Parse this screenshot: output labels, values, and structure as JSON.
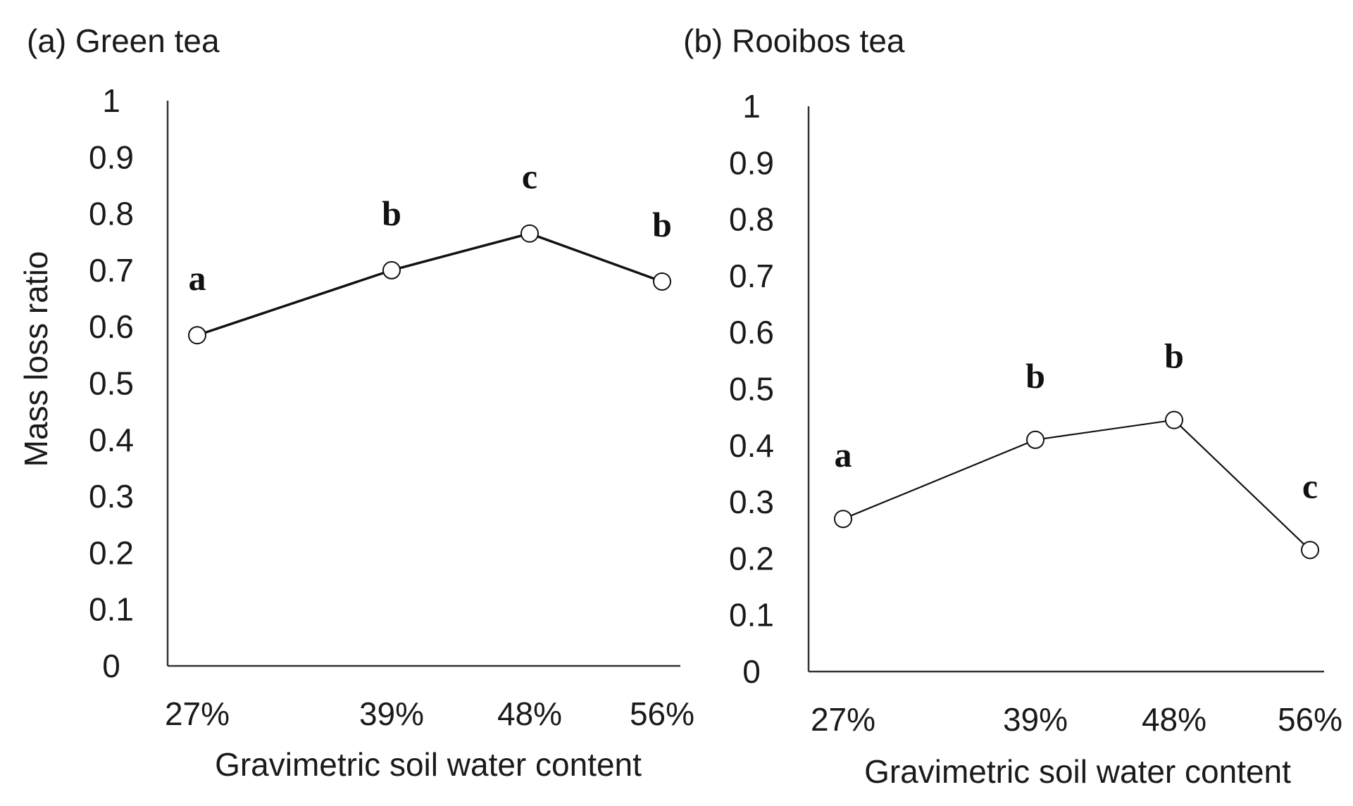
{
  "chart_data": [
    {
      "type": "line",
      "title": "(a) Green tea",
      "xlabel": "Gravimetric soil water content",
      "ylabel": "Mass loss ratio",
      "ylim": [
        0,
        1
      ],
      "yticks": [
        "0",
        "0.1",
        "0.2",
        "0.3",
        "0.4",
        "0.5",
        "0.6",
        "0.7",
        "0.8",
        "0.9",
        "1"
      ],
      "categories": [
        "27%",
        "39%",
        "48%",
        "56%"
      ],
      "x": [
        27,
        39,
        48,
        56
      ],
      "series": [
        {
          "name": "Green tea",
          "values": [
            0.585,
            0.7,
            0.765,
            0.68
          ]
        }
      ],
      "annotations": [
        "a",
        "b",
        "c",
        "b"
      ],
      "grid": false
    },
    {
      "type": "line",
      "title": "(b) Rooibos tea",
      "xlabel": "Gravimetric soil water content",
      "ylabel": "",
      "ylim": [
        0,
        1
      ],
      "yticks": [
        "0",
        "0.1",
        "0.2",
        "0.3",
        "0.4",
        "0.5",
        "0.6",
        "0.7",
        "0.8",
        "0.9",
        "1"
      ],
      "categories": [
        "27%",
        "39%",
        "48%",
        "56%"
      ],
      "x": [
        27,
        39,
        48,
        56
      ],
      "series": [
        {
          "name": "Rooibos tea",
          "values": [
            0.27,
            0.41,
            0.445,
            0.215
          ]
        }
      ],
      "annotations": [
        "a",
        "b",
        "b",
        "c"
      ],
      "grid": false
    }
  ]
}
